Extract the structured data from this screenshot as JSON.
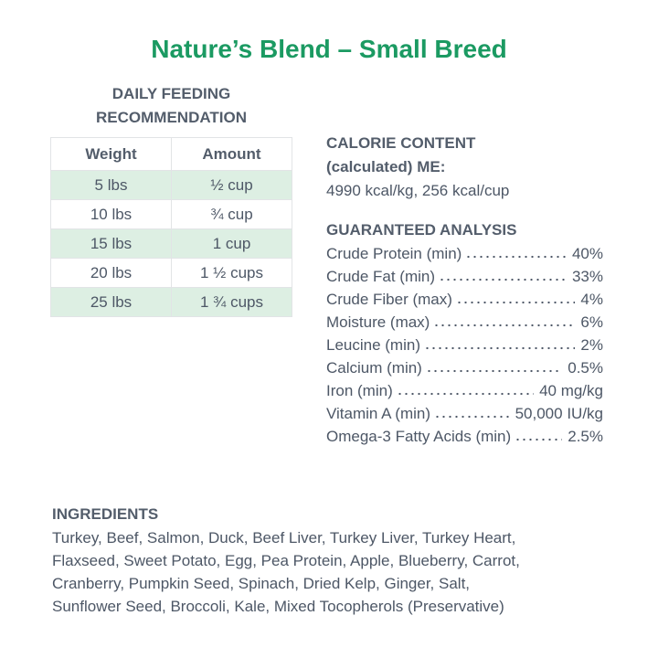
{
  "title": "Nature’s Blend – Small Breed",
  "feeding": {
    "heading": [
      "DAILY FEEDING",
      "RECOMMENDATION"
    ],
    "table": {
      "header": [
        "Weight",
        "Amount"
      ],
      "rows": [
        [
          "5 lbs",
          "½ cup"
        ],
        [
          "10 lbs",
          "¾ cup"
        ],
        [
          "15 lbs",
          "1 cup"
        ],
        [
          "20 lbs",
          "1 ½ cups"
        ],
        [
          "25 lbs",
          "1 ¾ cups"
        ]
      ]
    }
  },
  "calorie": {
    "heading": [
      "CALORIE CONTENT",
      "(calculated) ME:"
    ],
    "value": "4990 kcal/kg, 256 kcal/cup"
  },
  "analysis": {
    "heading": "GUARANTEED ANALYSIS",
    "items": [
      {
        "label": "Crude Protein (min)",
        "value": "40%"
      },
      {
        "label": "Crude Fat (min)",
        "value": "33%"
      },
      {
        "label": "Crude Fiber (max)",
        "value": "4%"
      },
      {
        "label": "Moisture (max)",
        "value": "6%"
      },
      {
        "label": "Leucine (min)",
        "value": "2%"
      },
      {
        "label": "Calcium (min)",
        "value": "0.5%"
      },
      {
        "label": "Iron (min)",
        "value": "40 mg/kg"
      },
      {
        "label": "Vitamin A (min)",
        "value": "50,000 IU/kg"
      },
      {
        "label": "Omega-3 Fatty Acids (min)",
        "value": "2.5%"
      }
    ]
  },
  "ingredients": {
    "heading": "INGREDIENTS",
    "lines": [
      "Turkey, Beef, Salmon, Duck, Beef Liver, Turkey Liver, Turkey Heart,",
      "Flaxseed, Sweet Potato, Egg, Pea Protein, Apple, Blueberry, Carrot,",
      "Cranberry, Pumpkin Seed, Spinach, Dried Kelp, Ginger, Salt,",
      "Sunflower Seed, Broccoli, Kale, Mixed Tocopherols (Preservative)"
    ]
  }
}
